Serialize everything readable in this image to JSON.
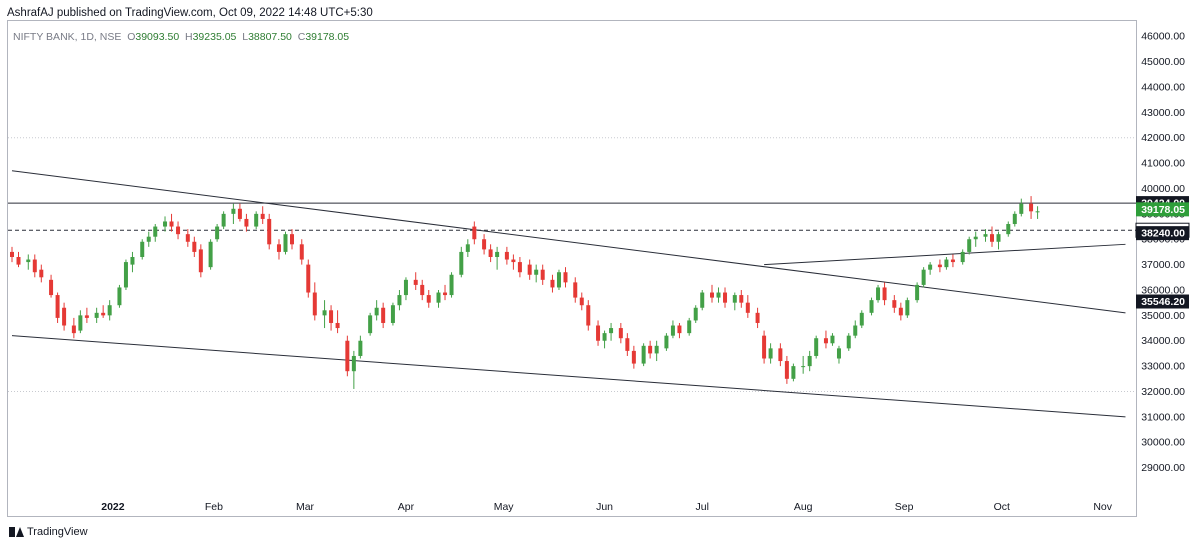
{
  "header": {
    "published": "AshrafAJ published on TradingView.com, Oct 09, 2022 14:48 UTC+5:30"
  },
  "legend": {
    "symbol": "NIFTY BANK, 1D, NSE",
    "o_label": "O",
    "open": "39093.50",
    "h_label": "H",
    "high": "39235.05",
    "l_label": "L",
    "low": "38807.50",
    "c_label": "C",
    "close": "39178.05"
  },
  "footer": {
    "brand": "TradingView"
  },
  "colors": {
    "up": "#26a69a",
    "up_body": "#43a047",
    "down": "#e53935",
    "line": "#2a2e39"
  },
  "chart_data": {
    "type": "candlestick",
    "title": "NIFTY BANK, 1D, NSE",
    "ylim": [
      28000,
      46600
    ],
    "y_ticks": [
      29000,
      30000,
      31000,
      32000,
      33000,
      34000,
      35000,
      36000,
      37000,
      38000,
      39000,
      40000,
      41000,
      42000,
      43000,
      44000,
      45000,
      46000
    ],
    "x_ticks": [
      "2022",
      "Feb",
      "Mar",
      "Apr",
      "May",
      "Jun",
      "Jul",
      "Aug",
      "Sep",
      "Oct",
      "Nov"
    ],
    "x_tick_dates": [
      "2022-01-01",
      "2022-02-01",
      "2022-03-01",
      "2022-04-01",
      "2022-05-01",
      "2022-06-01",
      "2022-07-01",
      "2022-08-01",
      "2022-09-01",
      "2022-10-01",
      "2022-11-01"
    ],
    "price_labels": [
      {
        "value": "39424.00",
        "style": "dark"
      },
      {
        "value": "39178.05",
        "style": "green"
      },
      {
        "value": "38355.00",
        "style": "light"
      },
      {
        "value": "38240.00",
        "style": "dark"
      },
      {
        "value": "35546.20",
        "style": "dark"
      }
    ],
    "horizontal_lines": [
      {
        "y": 39424,
        "style": "solid"
      },
      {
        "y": 38355,
        "style": "dashed"
      }
    ],
    "trend_lines": [
      {
        "from": [
          "2021-12-01",
          40700
        ],
        "to": [
          "2022-11-08",
          35100
        ]
      },
      {
        "from": [
          "2021-12-01",
          34200
        ],
        "to": [
          "2022-11-08",
          31000
        ]
      },
      {
        "from": [
          "2022-07-20",
          37000
        ],
        "to": [
          "2022-11-08",
          37800
        ]
      }
    ],
    "candles": [
      {
        "t": "2021-12-01",
        "o": 37500,
        "h": 37700,
        "l": 37100,
        "c": 37300
      },
      {
        "t": "2021-12-03",
        "o": 37300,
        "h": 37500,
        "l": 36900,
        "c": 37000
      },
      {
        "t": "2021-12-06",
        "o": 37100,
        "h": 37400,
        "l": 36800,
        "c": 37200
      },
      {
        "t": "2021-12-08",
        "o": 37200,
        "h": 37400,
        "l": 36500,
        "c": 36700
      },
      {
        "t": "2021-12-10",
        "o": 36800,
        "h": 37000,
        "l": 36300,
        "c": 36500
      },
      {
        "t": "2021-12-13",
        "o": 36400,
        "h": 36600,
        "l": 35700,
        "c": 35800
      },
      {
        "t": "2021-12-15",
        "o": 35800,
        "h": 35900,
        "l": 34700,
        "c": 34900
      },
      {
        "t": "2021-12-17",
        "o": 35300,
        "h": 35500,
        "l": 34400,
        "c": 34600
      },
      {
        "t": "2021-12-20",
        "o": 34600,
        "h": 34900,
        "l": 34100,
        "c": 34300
      },
      {
        "t": "2021-12-22",
        "o": 34400,
        "h": 35200,
        "l": 34300,
        "c": 35000
      },
      {
        "t": "2021-12-24",
        "o": 35000,
        "h": 35300,
        "l": 34700,
        "c": 34900
      },
      {
        "t": "2021-12-27",
        "o": 34900,
        "h": 35300,
        "l": 34700,
        "c": 35100
      },
      {
        "t": "2021-12-29",
        "o": 35100,
        "h": 35400,
        "l": 34900,
        "c": 35000
      },
      {
        "t": "2021-12-31",
        "o": 35000,
        "h": 35600,
        "l": 34800,
        "c": 35400
      },
      {
        "t": "2022-01-03",
        "o": 35400,
        "h": 36200,
        "l": 35300,
        "c": 36100
      },
      {
        "t": "2022-01-05",
        "o": 36100,
        "h": 37200,
        "l": 36000,
        "c": 37100
      },
      {
        "t": "2022-01-07",
        "o": 37000,
        "h": 37500,
        "l": 36700,
        "c": 37300
      },
      {
        "t": "2022-01-10",
        "o": 37300,
        "h": 38000,
        "l": 37200,
        "c": 37900
      },
      {
        "t": "2022-01-12",
        "o": 37900,
        "h": 38300,
        "l": 37700,
        "c": 38100
      },
      {
        "t": "2022-01-14",
        "o": 38100,
        "h": 38600,
        "l": 37900,
        "c": 38500
      },
      {
        "t": "2022-01-17",
        "o": 38500,
        "h": 38900,
        "l": 38300,
        "c": 38700
      },
      {
        "t": "2022-01-19",
        "o": 38700,
        "h": 39000,
        "l": 38300,
        "c": 38500
      },
      {
        "t": "2022-01-21",
        "o": 38500,
        "h": 38700,
        "l": 38000,
        "c": 38200
      },
      {
        "t": "2022-01-24",
        "o": 38200,
        "h": 38400,
        "l": 37700,
        "c": 37900
      },
      {
        "t": "2022-01-26",
        "o": 37900,
        "h": 38100,
        "l": 37300,
        "c": 37500
      },
      {
        "t": "2022-01-28",
        "o": 37600,
        "h": 37800,
        "l": 36500,
        "c": 36700
      },
      {
        "t": "2022-01-31",
        "o": 36900,
        "h": 38000,
        "l": 36800,
        "c": 37900
      },
      {
        "t": "2022-02-02",
        "o": 38000,
        "h": 38600,
        "l": 37900,
        "c": 38500
      },
      {
        "t": "2022-02-04",
        "o": 38500,
        "h": 39100,
        "l": 38400,
        "c": 39000
      },
      {
        "t": "2022-02-07",
        "o": 39000,
        "h": 39400,
        "l": 38600,
        "c": 39200
      },
      {
        "t": "2022-02-09",
        "o": 39200,
        "h": 39400,
        "l": 38700,
        "c": 38800
      },
      {
        "t": "2022-02-11",
        "o": 38800,
        "h": 39000,
        "l": 38300,
        "c": 38500
      },
      {
        "t": "2022-02-14",
        "o": 38500,
        "h": 39100,
        "l": 38400,
        "c": 39000
      },
      {
        "t": "2022-02-16",
        "o": 39000,
        "h": 39300,
        "l": 38600,
        "c": 38800
      },
      {
        "t": "2022-02-18",
        "o": 38800,
        "h": 39000,
        "l": 37600,
        "c": 37800
      },
      {
        "t": "2022-02-21",
        "o": 37800,
        "h": 38000,
        "l": 37200,
        "c": 37500
      },
      {
        "t": "2022-02-23",
        "o": 37500,
        "h": 38300,
        "l": 37400,
        "c": 38200
      },
      {
        "t": "2022-02-25",
        "o": 38200,
        "h": 38400,
        "l": 37600,
        "c": 37800
      },
      {
        "t": "2022-02-28",
        "o": 37800,
        "h": 38000,
        "l": 37000,
        "c": 37200
      },
      {
        "t": "2022-03-02",
        "o": 37000,
        "h": 37200,
        "l": 35700,
        "c": 35900
      },
      {
        "t": "2022-03-04",
        "o": 35900,
        "h": 36300,
        "l": 34800,
        "c": 35000
      },
      {
        "t": "2022-03-07",
        "o": 35000,
        "h": 35600,
        "l": 34500,
        "c": 35200
      },
      {
        "t": "2022-03-09",
        "o": 35200,
        "h": 35400,
        "l": 34400,
        "c": 34700
      },
      {
        "t": "2022-03-11",
        "o": 34700,
        "h": 35200,
        "l": 34300,
        "c": 34500
      },
      {
        "t": "2022-03-14",
        "o": 34000,
        "h": 34200,
        "l": 32600,
        "c": 32800
      },
      {
        "t": "2022-03-16",
        "o": 32800,
        "h": 33600,
        "l": 32100,
        "c": 33400
      },
      {
        "t": "2022-03-18",
        "o": 33400,
        "h": 34200,
        "l": 33300,
        "c": 34000
      },
      {
        "t": "2022-03-21",
        "o": 34300,
        "h": 35100,
        "l": 34200,
        "c": 35000
      },
      {
        "t": "2022-03-23",
        "o": 35000,
        "h": 35600,
        "l": 34800,
        "c": 35300
      },
      {
        "t": "2022-03-25",
        "o": 35300,
        "h": 35500,
        "l": 34500,
        "c": 34700
      },
      {
        "t": "2022-03-28",
        "o": 34700,
        "h": 35500,
        "l": 34600,
        "c": 35400
      },
      {
        "t": "2022-03-30",
        "o": 35400,
        "h": 36000,
        "l": 35200,
        "c": 35800
      },
      {
        "t": "2022-04-01",
        "o": 35800,
        "h": 36500,
        "l": 35600,
        "c": 36400
      },
      {
        "t": "2022-04-04",
        "o": 36400,
        "h": 36700,
        "l": 36000,
        "c": 36200
      },
      {
        "t": "2022-04-06",
        "o": 36200,
        "h": 36400,
        "l": 35600,
        "c": 35800
      },
      {
        "t": "2022-04-08",
        "o": 35800,
        "h": 36000,
        "l": 35300,
        "c": 35500
      },
      {
        "t": "2022-04-11",
        "o": 35500,
        "h": 36000,
        "l": 35300,
        "c": 35900
      },
      {
        "t": "2022-04-13",
        "o": 35900,
        "h": 36200,
        "l": 35600,
        "c": 35800
      },
      {
        "t": "2022-04-15",
        "o": 35800,
        "h": 36700,
        "l": 35700,
        "c": 36600
      },
      {
        "t": "2022-04-18",
        "o": 36600,
        "h": 37700,
        "l": 36500,
        "c": 37500
      },
      {
        "t": "2022-04-20",
        "o": 37500,
        "h": 38000,
        "l": 37300,
        "c": 37800
      },
      {
        "t": "2022-04-22",
        "o": 38500,
        "h": 38700,
        "l": 37800,
        "c": 38000
      },
      {
        "t": "2022-04-25",
        "o": 38000,
        "h": 38200,
        "l": 37400,
        "c": 37600
      },
      {
        "t": "2022-04-27",
        "o": 37600,
        "h": 37800,
        "l": 37100,
        "c": 37300
      },
      {
        "t": "2022-04-29",
        "o": 37300,
        "h": 37700,
        "l": 36800,
        "c": 37500
      },
      {
        "t": "2022-05-02",
        "o": 37500,
        "h": 37700,
        "l": 37000,
        "c": 37200
      },
      {
        "t": "2022-05-04",
        "o": 37200,
        "h": 37400,
        "l": 36800,
        "c": 37100
      },
      {
        "t": "2022-05-06",
        "o": 37100,
        "h": 37300,
        "l": 36500,
        "c": 36700
      },
      {
        "t": "2022-05-09",
        "o": 37000,
        "h": 37200,
        "l": 36400,
        "c": 36600
      },
      {
        "t": "2022-05-11",
        "o": 36600,
        "h": 37000,
        "l": 36300,
        "c": 36800
      },
      {
        "t": "2022-05-13",
        "o": 36800,
        "h": 37000,
        "l": 36200,
        "c": 36400
      },
      {
        "t": "2022-05-16",
        "o": 36400,
        "h": 36600,
        "l": 35900,
        "c": 36100
      },
      {
        "t": "2022-05-18",
        "o": 36100,
        "h": 36800,
        "l": 36000,
        "c": 36700
      },
      {
        "t": "2022-05-20",
        "o": 36700,
        "h": 36900,
        "l": 36100,
        "c": 36300
      },
      {
        "t": "2022-05-23",
        "o": 36300,
        "h": 36500,
        "l": 35500,
        "c": 35700
      },
      {
        "t": "2022-05-25",
        "o": 35700,
        "h": 35900,
        "l": 35200,
        "c": 35400
      },
      {
        "t": "2022-05-27",
        "o": 35400,
        "h": 35600,
        "l": 34400,
        "c": 34600
      },
      {
        "t": "2022-05-30",
        "o": 34600,
        "h": 34800,
        "l": 33800,
        "c": 34000
      },
      {
        "t": "2022-06-01",
        "o": 34000,
        "h": 34400,
        "l": 33700,
        "c": 34300
      },
      {
        "t": "2022-06-03",
        "o": 34300,
        "h": 34700,
        "l": 34000,
        "c": 34500
      },
      {
        "t": "2022-06-06",
        "o": 34500,
        "h": 34700,
        "l": 33900,
        "c": 34100
      },
      {
        "t": "2022-06-08",
        "o": 34100,
        "h": 34300,
        "l": 33400,
        "c": 33600
      },
      {
        "t": "2022-06-10",
        "o": 33600,
        "h": 33800,
        "l": 32900,
        "c": 33100
      },
      {
        "t": "2022-06-13",
        "o": 33100,
        "h": 33900,
        "l": 33000,
        "c": 33800
      },
      {
        "t": "2022-06-15",
        "o": 33800,
        "h": 34000,
        "l": 33300,
        "c": 33500
      },
      {
        "t": "2022-06-17",
        "o": 33500,
        "h": 34000,
        "l": 33200,
        "c": 33800
      },
      {
        "t": "2022-06-20",
        "o": 33700,
        "h": 34300,
        "l": 33600,
        "c": 34200
      },
      {
        "t": "2022-06-22",
        "o": 34200,
        "h": 34800,
        "l": 34100,
        "c": 34600
      },
      {
        "t": "2022-06-24",
        "o": 34600,
        "h": 34700,
        "l": 34100,
        "c": 34300
      },
      {
        "t": "2022-06-27",
        "o": 34300,
        "h": 34900,
        "l": 34200,
        "c": 34800
      },
      {
        "t": "2022-06-29",
        "o": 34800,
        "h": 35400,
        "l": 34700,
        "c": 35300
      },
      {
        "t": "2022-07-01",
        "o": 35300,
        "h": 36000,
        "l": 35200,
        "c": 35900
      },
      {
        "t": "2022-07-04",
        "o": 35900,
        "h": 36200,
        "l": 35500,
        "c": 35700
      },
      {
        "t": "2022-07-06",
        "o": 35700,
        "h": 36100,
        "l": 35500,
        "c": 35900
      },
      {
        "t": "2022-07-08",
        "o": 35900,
        "h": 36100,
        "l": 35300,
        "c": 35500
      },
      {
        "t": "2022-07-11",
        "o": 35500,
        "h": 35900,
        "l": 35200,
        "c": 35800
      },
      {
        "t": "2022-07-13",
        "o": 35800,
        "h": 36000,
        "l": 35300,
        "c": 35500
      },
      {
        "t": "2022-07-15",
        "o": 35500,
        "h": 35800,
        "l": 34900,
        "c": 35100
      },
      {
        "t": "2022-07-18",
        "o": 35100,
        "h": 35300,
        "l": 34500,
        "c": 34700
      },
      {
        "t": "2022-07-20",
        "o": 34200,
        "h": 34400,
        "l": 33100,
        "c": 33300
      },
      {
        "t": "2022-07-22",
        "o": 33300,
        "h": 33900,
        "l": 33100,
        "c": 33700
      },
      {
        "t": "2022-07-25",
        "o": 33700,
        "h": 33900,
        "l": 33000,
        "c": 33200
      },
      {
        "t": "2022-07-27",
        "o": 33200,
        "h": 33400,
        "l": 32300,
        "c": 32500
      },
      {
        "t": "2022-07-29",
        "o": 32500,
        "h": 33100,
        "l": 32400,
        "c": 33000
      },
      {
        "t": "2022-08-01",
        "o": 33000,
        "h": 33400,
        "l": 32700,
        "c": 33000
      },
      {
        "t": "2022-08-03",
        "o": 33000,
        "h": 33600,
        "l": 32800,
        "c": 33400
      },
      {
        "t": "2022-08-05",
        "o": 33400,
        "h": 34200,
        "l": 33300,
        "c": 34100
      },
      {
        "t": "2022-08-08",
        "o": 34100,
        "h": 34400,
        "l": 33700,
        "c": 33900
      },
      {
        "t": "2022-08-10",
        "o": 33900,
        "h": 34300,
        "l": 33800,
        "c": 34200
      },
      {
        "t": "2022-08-12",
        "o": 33300,
        "h": 33800,
        "l": 33100,
        "c": 33700
      },
      {
        "t": "2022-08-15",
        "o": 33700,
        "h": 34300,
        "l": 33600,
        "c": 34200
      },
      {
        "t": "2022-08-17",
        "o": 34200,
        "h": 34800,
        "l": 34100,
        "c": 34600
      },
      {
        "t": "2022-08-19",
        "o": 34600,
        "h": 35200,
        "l": 34500,
        "c": 35100
      },
      {
        "t": "2022-08-22",
        "o": 35100,
        "h": 35700,
        "l": 35000,
        "c": 35600
      },
      {
        "t": "2022-08-24",
        "o": 35600,
        "h": 36200,
        "l": 35500,
        "c": 36100
      },
      {
        "t": "2022-08-26",
        "o": 36100,
        "h": 36300,
        "l": 35400,
        "c": 35600
      },
      {
        "t": "2022-08-29",
        "o": 35600,
        "h": 35800,
        "l": 35100,
        "c": 35300
      },
      {
        "t": "2022-08-31",
        "o": 35300,
        "h": 35500,
        "l": 34800,
        "c": 35000
      },
      {
        "t": "2022-09-02",
        "o": 35000,
        "h": 35700,
        "l": 34900,
        "c": 35600
      },
      {
        "t": "2022-09-05",
        "o": 35600,
        "h": 36300,
        "l": 35500,
        "c": 36200
      },
      {
        "t": "2022-09-07",
        "o": 36200,
        "h": 36900,
        "l": 36100,
        "c": 36800
      },
      {
        "t": "2022-09-09",
        "o": 36800,
        "h": 37100,
        "l": 36600,
        "c": 37000
      },
      {
        "t": "2022-09-12",
        "o": 37000,
        "h": 37200,
        "l": 36700,
        "c": 36900
      },
      {
        "t": "2022-09-14",
        "o": 36900,
        "h": 37300,
        "l": 36800,
        "c": 37200
      },
      {
        "t": "2022-09-16",
        "o": 37200,
        "h": 37400,
        "l": 36900,
        "c": 37100
      },
      {
        "t": "2022-09-19",
        "o": 37100,
        "h": 37600,
        "l": 37000,
        "c": 37500
      },
      {
        "t": "2022-09-21",
        "o": 37500,
        "h": 38100,
        "l": 37400,
        "c": 38000
      },
      {
        "t": "2022-09-23",
        "o": 38000,
        "h": 38300,
        "l": 37700,
        "c": 38100
      },
      {
        "t": "2022-09-26",
        "o": 38100,
        "h": 38400,
        "l": 37900,
        "c": 38200
      },
      {
        "t": "2022-09-28",
        "o": 38200,
        "h": 38500,
        "l": 37700,
        "c": 37900
      },
      {
        "t": "2022-09-30",
        "o": 37900,
        "h": 38300,
        "l": 37600,
        "c": 38200
      },
      {
        "t": "2022-10-03",
        "o": 38200,
        "h": 38700,
        "l": 38100,
        "c": 38600
      },
      {
        "t": "2022-10-05",
        "o": 38600,
        "h": 39100,
        "l": 38500,
        "c": 39000
      },
      {
        "t": "2022-10-07",
        "o": 39000,
        "h": 39600,
        "l": 38900,
        "c": 39400
      },
      {
        "t": "2022-10-10",
        "o": 39400,
        "h": 39700,
        "l": 38800,
        "c": 39100
      },
      {
        "t": "2022-10-12",
        "o": 39100,
        "h": 39300,
        "l": 38800,
        "c": 39100
      }
    ]
  }
}
